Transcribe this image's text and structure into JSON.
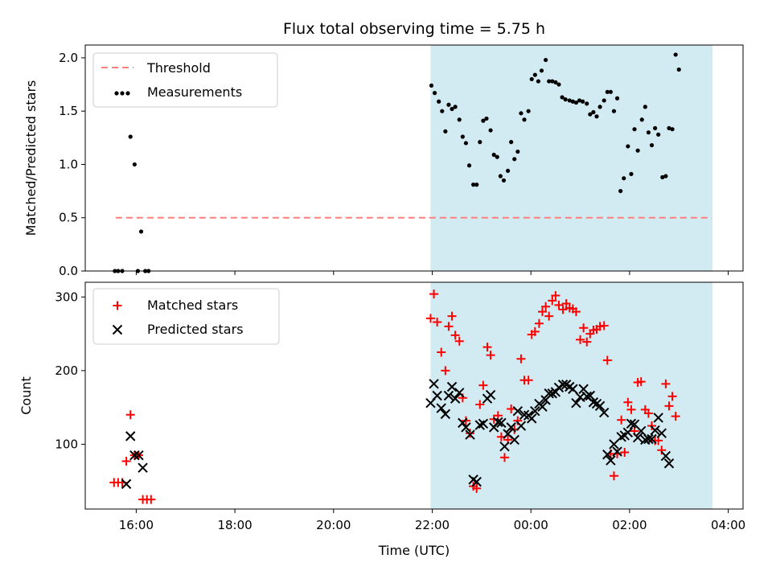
{
  "chart_data": [
    {
      "type": "scatter",
      "title": "Flux total observing time = 5.75 h",
      "xlabel": "",
      "ylabel": "Matched/Predicted stars",
      "ylim": [
        0,
        2.12
      ],
      "yticks": [
        "0.0",
        "0.5",
        "1.0",
        "1.5",
        "2.0"
      ],
      "ytick_values": [
        0,
        0.5,
        1.0,
        1.5,
        2.0
      ],
      "legend": "top-left",
      "grid": false,
      "threshold": {
        "name": "Threshold",
        "value": 0.5,
        "color": "#ff7f7f",
        "x_start": "15:35",
        "x_end": "03:40"
      },
      "shaded_interval": {
        "start": "21:58",
        "end": "03:41",
        "color": "#add8e6"
      },
      "series": [
        {
          "name": "Measurements",
          "color": "#000000",
          "points": [
            [
              "15:34",
              0.0
            ],
            [
              "15:38",
              0.0
            ],
            [
              "15:43",
              0.0
            ],
            [
              "15:53",
              1.26
            ],
            [
              "15:58",
              1.0
            ],
            [
              "16:02",
              0.0
            ],
            [
              "16:06",
              0.37
            ],
            [
              "16:11",
              0.0
            ],
            [
              "16:15",
              0.0
            ],
            [
              "21:59",
              1.74
            ],
            [
              "22:03",
              1.67
            ],
            [
              "22:08",
              1.59
            ],
            [
              "22:12",
              1.5
            ],
            [
              "22:16",
              1.31
            ],
            [
              "22:20",
              1.56
            ],
            [
              "22:24",
              1.52
            ],
            [
              "22:28",
              1.54
            ],
            [
              "22:33",
              1.42
            ],
            [
              "22:37",
              1.26
            ],
            [
              "22:41",
              1.2
            ],
            [
              "22:45",
              0.99
            ],
            [
              "22:50",
              0.81
            ],
            [
              "22:54",
              0.81
            ],
            [
              "22:58",
              1.21
            ],
            [
              "23:02",
              1.41
            ],
            [
              "23:06",
              1.43
            ],
            [
              "23:11",
              1.32
            ],
            [
              "23:15",
              1.09
            ],
            [
              "23:19",
              1.07
            ],
            [
              "23:23",
              0.89
            ],
            [
              "23:27",
              0.85
            ],
            [
              "23:32",
              0.94
            ],
            [
              "23:36",
              1.21
            ],
            [
              "23:40",
              1.05
            ],
            [
              "23:44",
              1.12
            ],
            [
              "23:48",
              1.48
            ],
            [
              "23:52",
              1.42
            ],
            [
              "23:57",
              1.5
            ],
            [
              "00:01",
              1.8
            ],
            [
              "00:05",
              1.84
            ],
            [
              "00:09",
              1.78
            ],
            [
              "00:13",
              1.88
            ],
            [
              "00:18",
              1.98
            ],
            [
              "00:22",
              1.78
            ],
            [
              "00:26",
              1.78
            ],
            [
              "00:30",
              1.77
            ],
            [
              "00:34",
              1.75
            ],
            [
              "00:38",
              1.63
            ],
            [
              "00:42",
              1.61
            ],
            [
              "00:47",
              1.6
            ],
            [
              "00:51",
              1.59
            ],
            [
              "00:55",
              1.58
            ],
            [
              "00:59",
              1.6
            ],
            [
              "01:03",
              1.59
            ],
            [
              "01:08",
              1.57
            ],
            [
              "01:12",
              1.47
            ],
            [
              "01:16",
              1.49
            ],
            [
              "01:20",
              1.45
            ],
            [
              "01:24",
              1.54
            ],
            [
              "01:29",
              1.6
            ],
            [
              "01:33",
              1.68
            ],
            [
              "01:37",
              1.68
            ],
            [
              "01:41",
              1.5
            ],
            [
              "01:45",
              1.62
            ],
            [
              "01:49",
              0.75
            ],
            [
              "01:53",
              0.87
            ],
            [
              "01:58",
              1.17
            ],
            [
              "02:02",
              0.91
            ],
            [
              "02:06",
              1.33
            ],
            [
              "02:10",
              1.13
            ],
            [
              "02:15",
              1.42
            ],
            [
              "02:19",
              1.54
            ],
            [
              "02:23",
              1.3
            ],
            [
              "02:27",
              1.18
            ],
            [
              "02:31",
              1.34
            ],
            [
              "02:35",
              1.28
            ],
            [
              "02:40",
              0.88
            ],
            [
              "02:44",
              0.89
            ],
            [
              "02:48",
              1.34
            ],
            [
              "02:52",
              1.33
            ],
            [
              "02:56",
              2.03
            ],
            [
              "03:00",
              1.89
            ]
          ]
        }
      ]
    },
    {
      "type": "scatter",
      "xlabel": "Time (UTC)",
      "ylabel": "Count",
      "ylim": [
        12,
        320
      ],
      "yticks": [
        "100",
        "200",
        "300"
      ],
      "ytick_values": [
        100,
        200,
        300
      ],
      "xticks": [
        "16:00",
        "18:00",
        "20:00",
        "22:00",
        "00:00",
        "02:00",
        "04:00"
      ],
      "xtick_values": [
        "16:00",
        "18:00",
        "20:00",
        "22:00",
        "00:00",
        "02:00",
        "04:00"
      ],
      "xlim": [
        "14:58",
        "04:18"
      ],
      "legend": "top-left",
      "grid": false,
      "shaded_interval": {
        "start": "21:58",
        "end": "03:41",
        "color": "#add8e6"
      },
      "series": [
        {
          "name": "Matched stars",
          "marker": "+",
          "color": "#ff0000",
          "points": [
            [
              "15:33",
              48
            ],
            [
              "15:38",
              48
            ],
            [
              "15:43",
              48
            ],
            [
              "15:48",
              77
            ],
            [
              "15:53",
              140
            ],
            [
              "15:58",
              85
            ],
            [
              "16:03",
              85
            ],
            [
              "16:08",
              25
            ],
            [
              "16:13",
              25
            ],
            [
              "16:18",
              25
            ],
            [
              "21:58",
              271
            ],
            [
              "22:02",
              304
            ],
            [
              "22:06",
              266
            ],
            [
              "22:11",
              225
            ],
            [
              "22:16",
              200
            ],
            [
              "22:20",
              260
            ],
            [
              "22:24",
              274
            ],
            [
              "22:28",
              248
            ],
            [
              "22:33",
              240
            ],
            [
              "22:37",
              163
            ],
            [
              "22:41",
              132
            ],
            [
              "22:46",
              115
            ],
            [
              "22:50",
              43
            ],
            [
              "22:54",
              40
            ],
            [
              "22:58",
              154
            ],
            [
              "23:02",
              180
            ],
            [
              "23:07",
              232
            ],
            [
              "23:11",
              221
            ],
            [
              "23:15",
              134
            ],
            [
              "23:20",
              139
            ],
            [
              "23:24",
              110
            ],
            [
              "23:28",
              82
            ],
            [
              "23:32",
              106
            ],
            [
              "23:36",
              148
            ],
            [
              "23:40",
              120
            ],
            [
              "23:44",
              132
            ],
            [
              "23:48",
              216
            ],
            [
              "23:52",
              187
            ],
            [
              "23:57",
              187
            ],
            [
              "00:01",
              249
            ],
            [
              "00:05",
              253
            ],
            [
              "00:10",
              264
            ],
            [
              "00:14",
              280
            ],
            [
              "00:18",
              287
            ],
            [
              "00:22",
              274
            ],
            [
              "00:26",
              295
            ],
            [
              "00:30",
              302
            ],
            [
              "00:34",
              289
            ],
            [
              "00:39",
              283
            ],
            [
              "00:43",
              291
            ],
            [
              "00:47",
              285
            ],
            [
              "00:51",
              284
            ],
            [
              "00:55",
              280
            ],
            [
              "01:00",
              242
            ],
            [
              "01:04",
              258
            ],
            [
              "01:08",
              239
            ],
            [
              "01:12",
              250
            ],
            [
              "01:16",
              255
            ],
            [
              "01:20",
              256
            ],
            [
              "01:24",
              260
            ],
            [
              "01:29",
              261
            ],
            [
              "01:33",
              214
            ],
            [
              "01:37",
              87
            ],
            [
              "01:41",
              57
            ],
            [
              "01:45",
              87
            ],
            [
              "01:50",
              133
            ],
            [
              "01:54",
              89
            ],
            [
              "01:58",
              157
            ],
            [
              "02:02",
              147
            ],
            [
              "02:06",
              118
            ],
            [
              "02:10",
              184
            ],
            [
              "02:14",
              185
            ],
            [
              "02:19",
              147
            ],
            [
              "02:23",
              142
            ],
            [
              "02:27",
              125
            ],
            [
              "02:31",
              105
            ],
            [
              "02:35",
              105
            ],
            [
              "02:39",
              92
            ],
            [
              "02:44",
              182
            ],
            [
              "02:48",
              152
            ],
            [
              "02:52",
              165
            ],
            [
              "02:56",
              138
            ]
          ]
        },
        {
          "name": "Predicted stars",
          "marker": "x",
          "color": "#000000",
          "points": [
            [
              "15:48",
              46
            ],
            [
              "15:53",
              111
            ],
            [
              "15:58",
              85
            ],
            [
              "16:03",
              85
            ],
            [
              "16:08",
              68
            ],
            [
              "21:58",
              156
            ],
            [
              "22:02",
              182
            ],
            [
              "22:06",
              166
            ],
            [
              "22:11",
              149
            ],
            [
              "22:16",
              141
            ],
            [
              "22:20",
              166
            ],
            [
              "22:24",
              178
            ],
            [
              "22:28",
              162
            ],
            [
              "22:33",
              170
            ],
            [
              "22:37",
              129
            ],
            [
              "22:41",
              123
            ],
            [
              "22:46",
              113
            ],
            [
              "22:50",
              52
            ],
            [
              "22:54",
              49
            ],
            [
              "22:58",
              126
            ],
            [
              "23:02",
              128
            ],
            [
              "23:07",
              162
            ],
            [
              "23:11",
              167
            ],
            [
              "23:15",
              123
            ],
            [
              "23:20",
              130
            ],
            [
              "23:24",
              129
            ],
            [
              "23:28",
              97
            ],
            [
              "23:32",
              114
            ],
            [
              "23:36",
              123
            ],
            [
              "23:40",
              106
            ],
            [
              "23:44",
              145
            ],
            [
              "23:48",
              125
            ],
            [
              "23:52",
              140
            ],
            [
              "23:57",
              139
            ],
            [
              "00:01",
              135
            ],
            [
              "00:05",
              145
            ],
            [
              "00:10",
              155
            ],
            [
              "00:14",
              151
            ],
            [
              "00:18",
              160
            ],
            [
              "00:22",
              169
            ],
            [
              "00:26",
              169
            ],
            [
              "00:30",
              171
            ],
            [
              "00:34",
              177
            ],
            [
              "00:39",
              181
            ],
            [
              "00:43",
              181
            ],
            [
              "00:47",
              178
            ],
            [
              "00:51",
              175
            ],
            [
              "00:55",
              156
            ],
            [
              "01:00",
              164
            ],
            [
              "01:04",
              175
            ],
            [
              "01:08",
              165
            ],
            [
              "01:12",
              166
            ],
            [
              "01:16",
              157
            ],
            [
              "01:20",
              155
            ],
            [
              "01:24",
              152
            ],
            [
              "01:29",
              143
            ],
            [
              "01:33",
              86
            ],
            [
              "01:37",
              78
            ],
            [
              "01:41",
              100
            ],
            [
              "01:45",
              90
            ],
            [
              "01:50",
              110
            ],
            [
              "01:54",
              112
            ],
            [
              "01:58",
              116
            ],
            [
              "02:02",
              128
            ],
            [
              "02:06",
              127
            ],
            [
              "02:10",
              109
            ],
            [
              "02:14",
              118
            ],
            [
              "02:19",
              106
            ],
            [
              "02:23",
              107
            ],
            [
              "02:27",
              107
            ],
            [
              "02:31",
              119
            ],
            [
              "02:35",
              136
            ],
            [
              "02:39",
              115
            ],
            [
              "02:44",
              84
            ],
            [
              "02:48",
              74
            ]
          ]
        }
      ]
    }
  ]
}
